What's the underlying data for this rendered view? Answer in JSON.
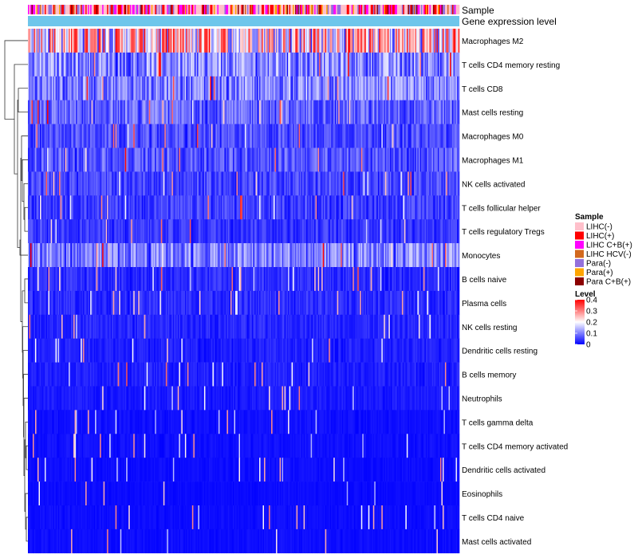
{
  "chart_data": {
    "type": "heatmap",
    "annotation_tracks": [
      "Sample",
      "Gene expression level"
    ],
    "rows": [
      {
        "name": "Macrophages M2",
        "mean": 0.24
      },
      {
        "name": "T cells CD4 memory resting",
        "mean": 0.11
      },
      {
        "name": "T cells CD8",
        "mean": 0.1
      },
      {
        "name": "Mast cells resting",
        "mean": 0.08
      },
      {
        "name": "Macrophages M0",
        "mean": 0.06
      },
      {
        "name": "Macrophages M1",
        "mean": 0.07
      },
      {
        "name": "NK cells activated",
        "mean": 0.055
      },
      {
        "name": "T cells follicular helper",
        "mean": 0.05
      },
      {
        "name": "T cells regulatory  Tregs",
        "mean": 0.045
      },
      {
        "name": "Monocytes",
        "mean": 0.1
      },
      {
        "name": "B cells naive",
        "mean": 0.035
      },
      {
        "name": "Plasma cells",
        "mean": 0.035
      },
      {
        "name": "NK cells resting",
        "mean": 0.03
      },
      {
        "name": "Dendritic cells resting",
        "mean": 0.025
      },
      {
        "name": "B cells memory",
        "mean": 0.025
      },
      {
        "name": "Neutrophils",
        "mean": 0.02
      },
      {
        "name": "T cells gamma delta",
        "mean": 0.012
      },
      {
        "name": "T cells CD4 memory activated",
        "mean": 0.012
      },
      {
        "name": "Dendritic cells activated",
        "mean": 0.01
      },
      {
        "name": "Eosinophils",
        "mean": 0.008
      },
      {
        "name": "T cells CD4 naive",
        "mean": 0.01
      },
      {
        "name": "Mast cells activated",
        "mean": 0.01
      }
    ],
    "sample_legend": {
      "title": "Sample",
      "items": [
        {
          "label": "LIHC(-)",
          "color": "#FFC0CB"
        },
        {
          "label": "LIHC(+)",
          "color": "#FF0000"
        },
        {
          "label": "LIHC C+B(+)",
          "color": "#FF00FF"
        },
        {
          "label": "LIHC HCV(-)",
          "color": "#D2691E"
        },
        {
          "label": "Para(-)",
          "color": "#9370DB"
        },
        {
          "label": "Para(+)",
          "color": "#FFA500"
        },
        {
          "label": "Para C+B(+)",
          "color": "#8B0000"
        }
      ]
    },
    "level_legend": {
      "title": "Level",
      "ticks": [
        {
          "label": "0.4",
          "value": 0.4
        },
        {
          "label": "0.3",
          "value": 0.3
        },
        {
          "label": "0.2",
          "value": 0.2
        },
        {
          "label": "0.1",
          "value": 0.1
        },
        {
          "label": "0",
          "value": 0
        }
      ],
      "range": [
        0,
        0.4
      ],
      "colors": [
        "#0000FF",
        "#FFFFFF",
        "#FF0000"
      ]
    },
    "gene_expression_color": "#6EC6EB"
  }
}
